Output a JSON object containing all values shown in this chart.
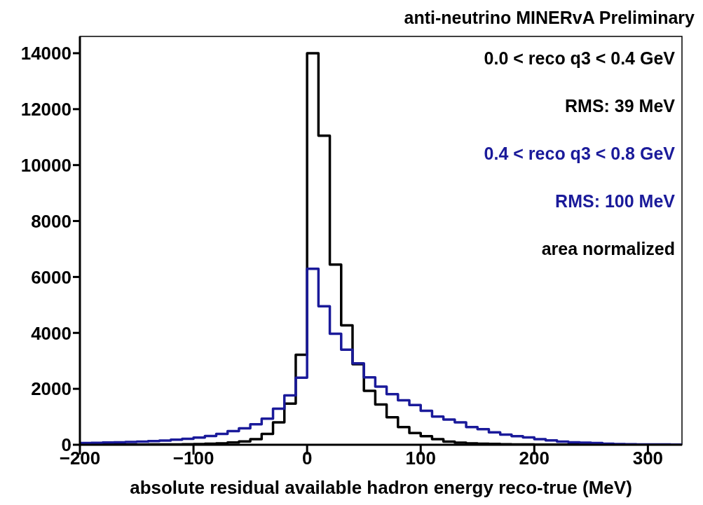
{
  "chart_data": {
    "type": "histogram",
    "title": "anti-neutrino MINERvA Preliminary",
    "xlabel": "absolute residual available hadron energy reco-true (MeV)",
    "bins": [
      -200,
      -190,
      -180,
      -170,
      -160,
      -150,
      -140,
      -130,
      -120,
      -110,
      -100,
      -90,
      -80,
      -70,
      -60,
      -50,
      -40,
      -30,
      -20,
      -10,
      0,
      10,
      20,
      30,
      40,
      50,
      60,
      70,
      80,
      90,
      100,
      110,
      120,
      130,
      140,
      150,
      160,
      170,
      180,
      190,
      200,
      210,
      220,
      230,
      240,
      250,
      260,
      270,
      280,
      290,
      300,
      310,
      320,
      330
    ],
    "series": [
      {
        "name": "0.0 < reco q3 < 0.4 GeV",
        "color": "#000000",
        "values": [
          5,
          5,
          5,
          5,
          8,
          8,
          10,
          12,
          15,
          20,
          25,
          35,
          50,
          80,
          120,
          200,
          390,
          800,
          1470,
          3215,
          14000,
          11050,
          6440,
          4270,
          2880,
          1930,
          1440,
          985,
          635,
          420,
          305,
          200,
          115,
          75,
          50,
          40,
          30,
          20,
          15,
          10,
          8,
          5,
          5,
          5,
          3,
          3,
          2,
          2,
          2,
          1,
          1,
          1,
          1
        ]
      },
      {
        "name": "0.4 < reco q3 < 0.8 GeV",
        "color": "#1a1a9a",
        "values": [
          60,
          70,
          80,
          90,
          100,
          115,
          130,
          150,
          180,
          215,
          255,
          310,
          390,
          490,
          590,
          735,
          930,
          1290,
          1765,
          2400,
          6290,
          4950,
          3970,
          3400,
          2910,
          2410,
          2080,
          1810,
          1590,
          1420,
          1215,
          1010,
          900,
          800,
          635,
          555,
          445,
          365,
          305,
          265,
          200,
          155,
          115,
          90,
          75,
          60,
          40,
          25,
          20,
          15,
          12,
          10,
          8
        ]
      }
    ],
    "annotations": [
      "RMS: 39 MeV",
      "RMS: 100 MeV",
      "area normalized"
    ],
    "legend": "top right",
    "xlim": [
      -200,
      330
    ],
    "xticks": [
      {
        "value": -200,
        "label": "−200"
      },
      {
        "value": -100,
        "label": "−100"
      },
      0,
      100,
      200,
      300
    ],
    "ylim": [
      0,
      14600
    ],
    "yticks": [
      0,
      2000,
      4000,
      6000,
      8000,
      10000,
      12000,
      14000
    ]
  }
}
